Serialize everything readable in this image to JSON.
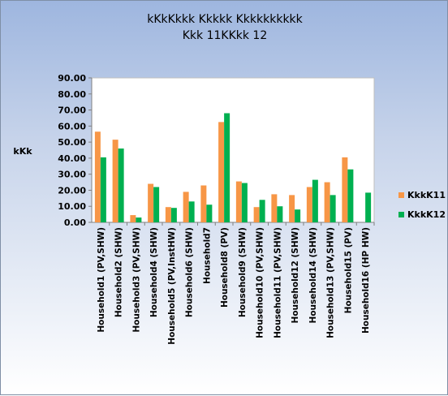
{
  "chart_data": {
    "type": "bar",
    "title_lines": [
      "kKkKkkk Kkkkk Kkkkkkkkkk",
      "Kkk 11KKkk 12"
    ],
    "xlabel": "",
    "ylabel": "kKk",
    "ylim": [
      0,
      90
    ],
    "yticks": [
      "0.00",
      "10.00",
      "20.00",
      "30.00",
      "40.00",
      "50.00",
      "60.00",
      "70.00",
      "80.00",
      "90.00"
    ],
    "grid": false,
    "legend_position": "right",
    "categories": [
      "Household1 (PV,SHW)",
      "Household2 (SHW)",
      "Household3 (PV,SHW)",
      "Household4 (SHW)",
      "Household5 (PV,InstHW)",
      "Household6 (SHW)",
      "Household7",
      "Household8 (PV)",
      "Household9 (SHW)",
      "Household10 (PV,SHW)",
      "Household11 (PV,SHW)",
      "Household12 (SHW)",
      "Household14 (SHW)",
      "Household13 (PV,SHW)",
      "Household15 (PV)",
      "Household16 (HP HW)"
    ],
    "series": [
      {
        "name": "KkkK11",
        "color": "#f79646",
        "values": [
          56.5,
          51.5,
          4.5,
          24,
          9.5,
          19,
          23,
          62.5,
          25.5,
          9.5,
          17.5,
          17,
          22,
          25,
          40.5,
          null
        ]
      },
      {
        "name": "KkkK12",
        "color": "#00b050",
        "values": [
          40.5,
          46,
          3,
          22,
          9,
          13,
          11,
          68,
          24.5,
          14,
          10,
          8,
          26.5,
          17,
          33,
          18.5
        ]
      }
    ]
  }
}
